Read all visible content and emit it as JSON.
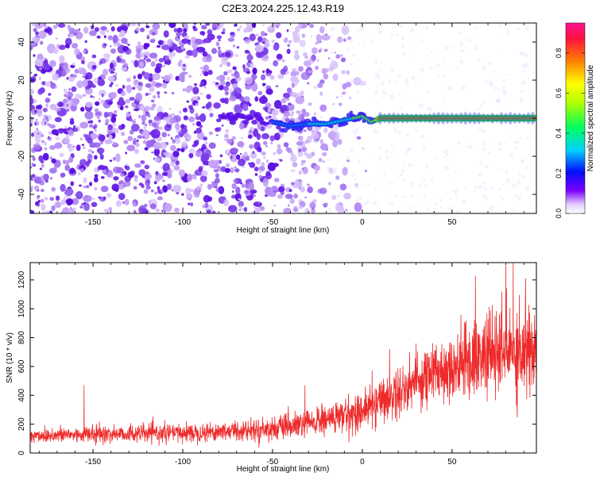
{
  "title": "C2E3.2024.225.12.43.R19",
  "colors": {
    "spectrogram_base": "#8a2be2",
    "trace_core": "#e8322a",
    "snr_line": "#ee2a2a",
    "frame": "#000000",
    "background": "#ffffff"
  },
  "chart_data": [
    {
      "type": "heatmap",
      "xlabel": "Height of straight line (km)",
      "ylabel": "Frequency (Hz)",
      "xlim": [
        -185,
        97
      ],
      "ylim": [
        -50,
        50
      ],
      "xticks": [
        -150,
        -100,
        -50,
        0,
        50
      ],
      "yticks": [
        -40,
        -20,
        0,
        20,
        40
      ],
      "grid": false,
      "description_values": {
        "noise_region_x": [
          -185,
          -20
        ],
        "trace_frequency_at_x": [
          {
            "x": -80,
            "y": 1
          },
          {
            "x": -60,
            "y": 0
          },
          {
            "x": -40,
            "y": -4
          },
          {
            "x": -30,
            "y": -3
          },
          {
            "x": -20,
            "y": -3
          },
          {
            "x": -10,
            "y": -1
          },
          {
            "x": 0,
            "y": 1
          },
          {
            "x": 5,
            "y": -2
          },
          {
            "x": 10,
            "y": 0
          },
          {
            "x": 50,
            "y": 0
          },
          {
            "x": 97,
            "y": 0
          }
        ]
      },
      "colorbar": {
        "label": "Normalized spectral amplitude",
        "range": [
          0,
          0.95
        ],
        "ticks": [
          0.0,
          0.2,
          0.4,
          0.6,
          0.8
        ],
        "tick_labels": [
          "0.0",
          "0.2",
          "0.4",
          "0.6",
          "0.8"
        ],
        "colormap": [
          "#ffffff",
          "#c8a8f8",
          "#6a00ff",
          "#0000ff",
          "#00d0ff",
          "#00ff40",
          "#ffff00",
          "#ff8000",
          "#ff0040",
          "#ff1493"
        ]
      }
    },
    {
      "type": "line",
      "xlabel": "Height of straight line (km)",
      "ylabel": "SNR (10 * v/v)",
      "xlim": [
        -185,
        97
      ],
      "ylim": [
        0,
        1320
      ],
      "xticks": [
        -150,
        -100,
        -50,
        0,
        50
      ],
      "yticks": [
        0,
        200,
        400,
        600,
        800,
        1000,
        1200
      ],
      "grid": false,
      "series": [
        {
          "envelope_x": [
            -185,
            -150,
            -100,
            -60,
            -40,
            -20,
            0,
            10,
            20,
            30,
            40,
            50,
            60,
            70,
            80,
            90,
            97
          ],
          "envelope_mean": [
            120,
            130,
            140,
            160,
            180,
            230,
            290,
            370,
            420,
            500,
            560,
            600,
            640,
            680,
            700,
            720,
            700
          ],
          "envelope_spread": [
            60,
            65,
            70,
            80,
            100,
            120,
            150,
            180,
            200,
            220,
            240,
            260,
            280,
            320,
            360,
            380,
            360
          ],
          "peaks": [
            {
              "x": -155,
              "y": 470
            },
            {
              "x": -32,
              "y": 470
            },
            {
              "x": 30,
              "y": 760
            },
            {
              "x": 63,
              "y": 1230
            },
            {
              "x": 80,
              "y": 1300
            },
            {
              "x": 84,
              "y": 1320
            },
            {
              "x": 91,
              "y": 1210
            }
          ]
        }
      ]
    }
  ]
}
